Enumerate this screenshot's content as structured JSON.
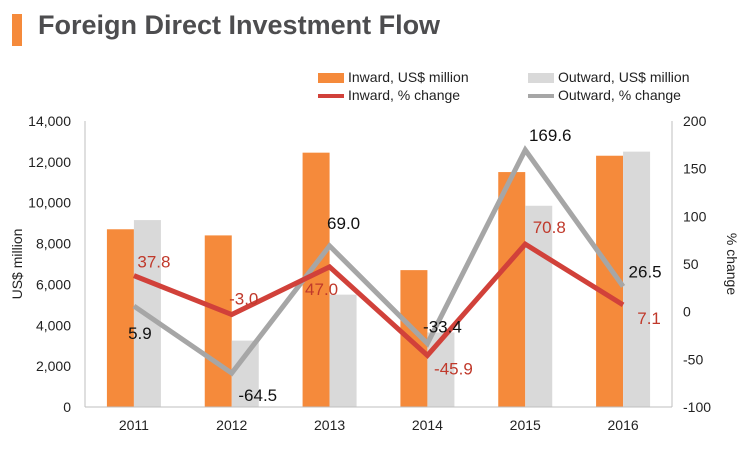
{
  "title": "Foreign Direct Investment Flow",
  "colors": {
    "accent": "#f58a3b",
    "inward_bar": "#f58a3b",
    "outward_bar": "#d9d9d9",
    "inward_line": "#d1413a",
    "outward_line": "#a6a6a6",
    "inward_label": "#c0392b",
    "outward_label": "#111111"
  },
  "legend": {
    "inward_bar": "Inward, US$ million",
    "outward_bar": "Outward, US$ million",
    "inward_line": "Inward, % change",
    "outward_line": "Outward, % change"
  },
  "chart_data": {
    "type": "bar",
    "title": "Foreign Direct Investment Flow",
    "categories": [
      "2011",
      "2012",
      "2013",
      "2014",
      "2015",
      "2016"
    ],
    "ylabel": "US$ million",
    "y2label": "% change",
    "ylim": [
      0,
      14000
    ],
    "y2lim": [
      -100,
      200
    ],
    "yticks": [
      "0",
      "2,000",
      "4,000",
      "6,000",
      "8,000",
      "10,000",
      "12,000",
      "14,000"
    ],
    "y2ticks": [
      "-100",
      "-50",
      "0",
      "50",
      "100",
      "150",
      "200"
    ],
    "series": [
      {
        "name": "Inward, US$ million",
        "kind": "bar",
        "axis": "left",
        "values": [
          8700,
          8400,
          12450,
          6700,
          11500,
          12300
        ]
      },
      {
        "name": "Outward, US$ million",
        "kind": "bar",
        "axis": "left",
        "values": [
          9150,
          3250,
          5500,
          3650,
          9850,
          12500
        ]
      },
      {
        "name": "Inward, % change",
        "kind": "line",
        "axis": "right",
        "values": [
          37.8,
          -3.0,
          47.0,
          -45.9,
          70.8,
          7.1
        ],
        "labels": [
          "37.8",
          "-3.0",
          "47.0",
          "-45.9",
          "70.8",
          "7.1"
        ]
      },
      {
        "name": "Outward, % change",
        "kind": "line",
        "axis": "right",
        "values": [
          5.9,
          -64.5,
          69.0,
          -33.4,
          169.6,
          26.5
        ],
        "labels": [
          "5.9",
          "-64.5",
          "69.0",
          "-33.4",
          "169.6",
          "26.5"
        ]
      }
    ]
  }
}
